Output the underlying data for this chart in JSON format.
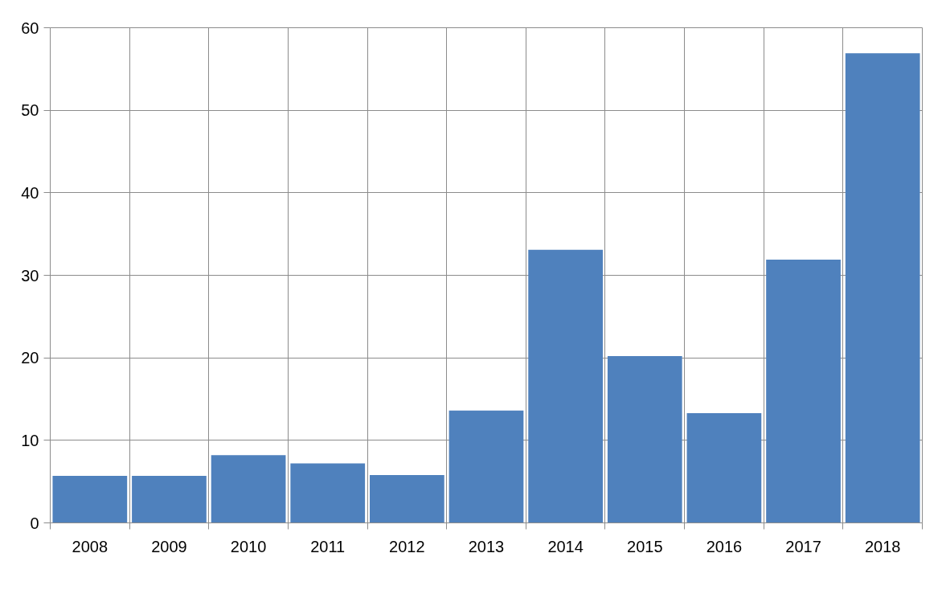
{
  "chart_data": {
    "type": "bar",
    "categories": [
      "2008",
      "2009",
      "2010",
      "2011",
      "2012",
      "2013",
      "2014",
      "2015",
      "2016",
      "2017",
      "2018"
    ],
    "values": [
      5.7,
      5.7,
      8.2,
      7.2,
      5.8,
      13.6,
      33.1,
      20.2,
      13.3,
      31.9,
      56.9
    ],
    "color": "#4f81bd",
    "ylim": [
      0,
      60
    ],
    "yticks": [
      0,
      10,
      20,
      30,
      40,
      50,
      60
    ],
    "grid": true
  }
}
